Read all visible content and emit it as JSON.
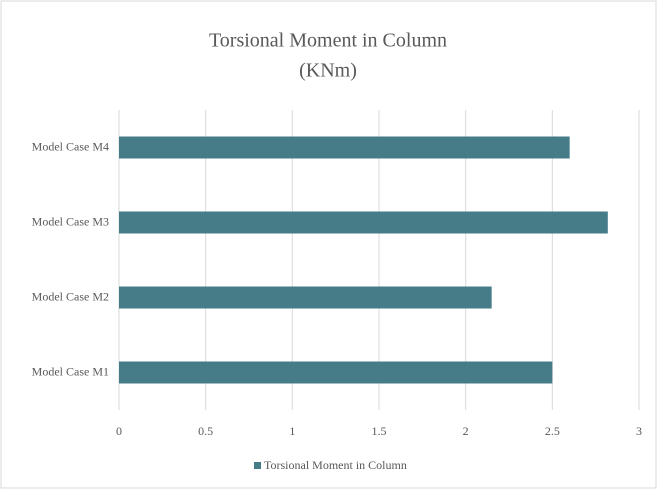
{
  "chart_data": {
    "type": "bar",
    "orientation": "horizontal",
    "title": "Torsional Moment in Column",
    "subtitle": "(KNm)",
    "categories": [
      "Model Case M1",
      "Model Case M2",
      "Model Case M3",
      "Model Case M4"
    ],
    "series": [
      {
        "name": "Torsional Moment in Column",
        "color": "#467c88",
        "values": [
          2.5,
          2.15,
          2.82,
          2.6
        ]
      }
    ],
    "xlim": [
      0,
      3
    ],
    "xticks": [
      0,
      0.5,
      1,
      1.5,
      2,
      2.5,
      3
    ],
    "grid": true,
    "legend": "bottom"
  }
}
